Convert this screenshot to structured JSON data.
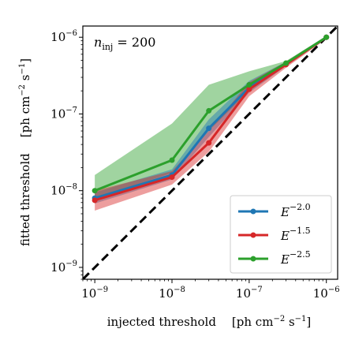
{
  "chart_data": {
    "type": "line",
    "title": "",
    "xlabel": "injected threshold",
    "xlabel_unit_prefix": "[ph cm",
    "xlabel_unit_exp": "−2",
    "xlabel_unit_mid": " s",
    "xlabel_unit_exp2": "−1",
    "xlabel_unit_suffix": "]",
    "ylabel": "fitted threshold",
    "ylabel_unit_prefix": "[ph cm",
    "ylabel_unit_exp": "−2",
    "ylabel_unit_mid": " s",
    "ylabel_unit_exp2": "−1",
    "ylabel_unit_suffix": "]",
    "xscale": "log",
    "yscale": "log",
    "xlim": [
      7e-10,
      1.4e-06
    ],
    "ylim": [
      7e-10,
      1.4e-06
    ],
    "xticks": [
      {
        "value": 1e-09,
        "base": "10",
        "exp": "−9"
      },
      {
        "value": 1e-08,
        "base": "10",
        "exp": "−8"
      },
      {
        "value": 1e-07,
        "base": "10",
        "exp": "−7"
      },
      {
        "value": 1e-06,
        "base": "10",
        "exp": "−6"
      }
    ],
    "yticks": [
      {
        "value": 1e-09,
        "base": "10",
        "exp": "−9"
      },
      {
        "value": 1e-08,
        "base": "10",
        "exp": "−8"
      },
      {
        "value": 1e-07,
        "base": "10",
        "exp": "−7"
      },
      {
        "value": 1e-06,
        "base": "10",
        "exp": "−6"
      }
    ],
    "annotation": {
      "symbol": "n",
      "subscript": "inj",
      "text": " = 200"
    },
    "reference_line": {
      "style": "dashed",
      "color": "#000000",
      "description": "y = x"
    },
    "legend_position": "lower-right",
    "x": [
      1e-09,
      1e-08,
      3e-08,
      1e-07,
      3e-07,
      1e-06
    ],
    "series": [
      {
        "name_base": "E",
        "name_exp": "−2.0",
        "color": "#1f77b4",
        "values": [
          8e-09,
          1.6e-08,
          6.5e-08,
          2.2e-07,
          4.5e-07,
          1e-06
        ],
        "lower": [
          6.8e-09,
          1.4e-08,
          5e-08,
          1.9e-07,
          4.2e-07,
          9.6e-07
        ],
        "upper": [
          9.5e-09,
          1.9e-08,
          8.5e-08,
          2.7e-07,
          4.8e-07,
          1.03e-06
        ]
      },
      {
        "name_base": "E",
        "name_exp": "−1.5",
        "color": "#d62728",
        "values": [
          7.5e-09,
          1.5e-08,
          4.2e-08,
          2.1e-07,
          4.4e-07,
          1e-06
        ],
        "lower": [
          5.5e-09,
          1.2e-08,
          3.2e-08,
          1.7e-07,
          4e-07,
          9.5e-07
        ],
        "upper": [
          1e-08,
          1.8e-08,
          6e-08,
          2.6e-07,
          4.8e-07,
          1.03e-06
        ]
      },
      {
        "name_base": "E",
        "name_exp": "−2.5",
        "color": "#2ca02c",
        "values": [
          1e-08,
          2.5e-08,
          1.1e-07,
          2.4e-07,
          4.6e-07,
          1e-06
        ],
        "lower": [
          8e-09,
          1.7e-08,
          6e-08,
          2e-07,
          4.3e-07,
          9.6e-07
        ],
        "upper": [
          1.6e-08,
          7.5e-08,
          2.4e-07,
          3.6e-07,
          4.9e-07,
          1.04e-06
        ]
      }
    ]
  }
}
